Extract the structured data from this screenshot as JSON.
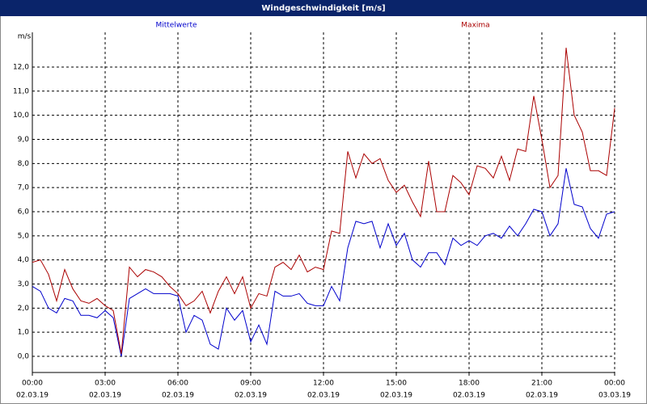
{
  "chart_data": {
    "type": "line",
    "title": "Windgeschwindigkeit [m/s]",
    "y_unit": "m/s",
    "x": [
      0,
      20,
      40,
      60,
      80,
      100,
      120,
      140,
      160,
      180,
      200,
      220,
      240,
      260,
      280,
      300,
      320,
      340,
      360,
      380,
      400,
      420,
      440,
      460,
      480,
      500,
      520,
      540,
      560,
      580,
      600,
      620,
      640,
      660,
      680,
      700,
      720,
      740,
      760,
      780,
      800,
      820,
      840,
      860,
      880,
      900,
      920,
      940,
      960,
      980,
      1000,
      1020,
      1040,
      1060,
      1080,
      1100,
      1120,
      1140,
      1160,
      1180,
      1200,
      1220,
      1240,
      1260,
      1280,
      1300,
      1320,
      1340,
      1360,
      1380,
      1400,
      1420,
      1440
    ],
    "series": [
      {
        "name": "Mittelwerte",
        "color": "#0000cc",
        "values": [
          2.9,
          2.7,
          2.0,
          1.8,
          2.4,
          2.3,
          1.7,
          1.7,
          1.6,
          1.9,
          1.6,
          0.0,
          2.4,
          2.6,
          2.8,
          2.6,
          2.6,
          2.6,
          2.5,
          1.0,
          1.7,
          1.5,
          0.5,
          0.3,
          2.0,
          1.5,
          1.9,
          0.6,
          1.3,
          0.5,
          2.7,
          2.5,
          2.5,
          2.6,
          2.2,
          2.1,
          2.1,
          2.9,
          2.3,
          4.5,
          5.6,
          5.5,
          5.6,
          4.5,
          5.5,
          4.6,
          5.1,
          4.0,
          3.7,
          4.3,
          4.3,
          3.8,
          4.9,
          4.6,
          4.8,
          4.6,
          5.0,
          5.1,
          4.9,
          5.4,
          5.0,
          5.5,
          6.1,
          6.0,
          5.0,
          5.5,
          7.8,
          6.3,
          6.2,
          5.3,
          4.9,
          5.9,
          6.0
        ]
      },
      {
        "name": "Maxima",
        "color": "#aa0000",
        "values": [
          3.9,
          4.0,
          3.4,
          2.3,
          3.6,
          2.8,
          2.3,
          2.2,
          2.4,
          2.1,
          1.9,
          0.1,
          3.7,
          3.3,
          3.6,
          3.5,
          3.3,
          2.9,
          2.6,
          2.1,
          2.3,
          2.7,
          1.8,
          2.7,
          3.3,
          2.6,
          3.3,
          2.0,
          2.6,
          2.5,
          3.7,
          3.9,
          3.6,
          4.2,
          3.5,
          3.7,
          3.6,
          5.2,
          5.1,
          8.5,
          7.4,
          8.4,
          8.0,
          8.2,
          7.3,
          6.8,
          7.1,
          6.4,
          5.8,
          8.1,
          6.0,
          6.0,
          7.5,
          7.2,
          6.7,
          7.9,
          7.8,
          7.4,
          8.3,
          7.3,
          8.6,
          8.5,
          10.8,
          9.0,
          7.0,
          7.5,
          12.8,
          10.0,
          9.3,
          7.7,
          7.7,
          7.5,
          10.3
        ]
      }
    ],
    "xlim": [
      0,
      1440
    ],
    "xticks": [
      {
        "value": 0,
        "label": "00:00"
      },
      {
        "value": 180,
        "label": "03:00"
      },
      {
        "value": 360,
        "label": "06:00"
      },
      {
        "value": 540,
        "label": "09:00"
      },
      {
        "value": 720,
        "label": "12:00"
      },
      {
        "value": 900,
        "label": "15:00"
      },
      {
        "value": 1080,
        "label": "18:00"
      },
      {
        "value": 1260,
        "label": "21:00"
      },
      {
        "value": 1440,
        "label": "00:00"
      }
    ],
    "xtick_dates": [
      "02.03.19",
      "02.03.19",
      "02.03.19",
      "02.03.19",
      "02.03.19",
      "02.03.19",
      "02.03.19",
      "02.03.19",
      "03.03.19"
    ],
    "ylim": [
      -0.67,
      13.44
    ],
    "yticks": [
      {
        "value": 0,
        "label": "0,0"
      },
      {
        "value": 1,
        "label": "1,0"
      },
      {
        "value": 2,
        "label": "2,0"
      },
      {
        "value": 3,
        "label": "3,0"
      },
      {
        "value": 4,
        "label": "4,0"
      },
      {
        "value": 5,
        "label": "5,0"
      },
      {
        "value": 6,
        "label": "6,0"
      },
      {
        "value": 7,
        "label": "7,0"
      },
      {
        "value": 8,
        "label": "8,0"
      },
      {
        "value": 9,
        "label": "9,0"
      },
      {
        "value": 10,
        "label": "10,0"
      },
      {
        "value": 11,
        "label": "11,0"
      },
      {
        "value": 12,
        "label": "12,0"
      }
    ],
    "grid": true
  }
}
